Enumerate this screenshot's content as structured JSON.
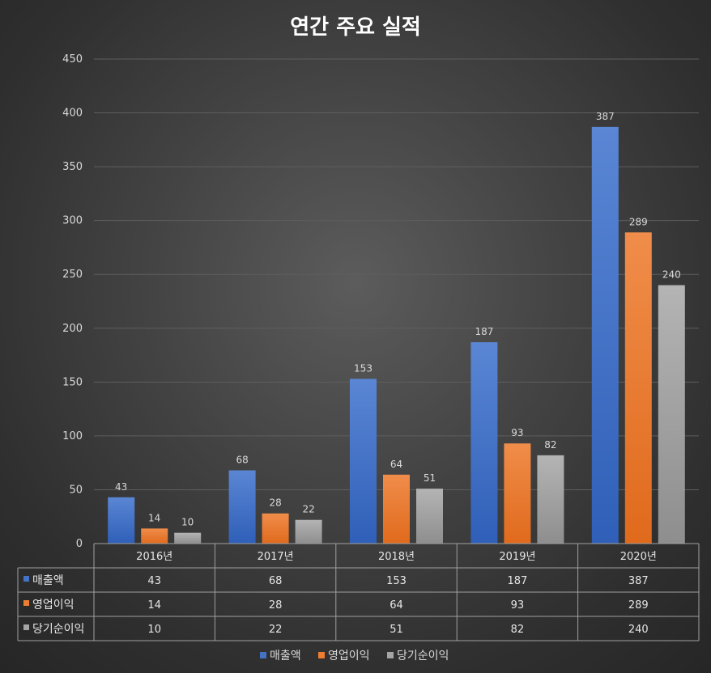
{
  "chart_data": {
    "type": "bar",
    "title": "연간 주요 실적",
    "categories": [
      "2016년",
      "2017년",
      "2018년",
      "2019년",
      "2020년"
    ],
    "series": [
      {
        "name": "매출액",
        "values": [
          43,
          68,
          153,
          187,
          387
        ],
        "color": "#4472c4"
      },
      {
        "name": "영업이익",
        "values": [
          14,
          28,
          64,
          93,
          289
        ],
        "color": "#ed7d31"
      },
      {
        "name": "당기순이익",
        "values": [
          10,
          22,
          51,
          82,
          240
        ],
        "color": "#a5a5a5"
      }
    ],
    "ylim": [
      0,
      450
    ],
    "yticks": [
      0,
      50,
      100,
      150,
      200,
      250,
      300,
      350,
      400,
      450
    ],
    "grid": true,
    "data_table": true,
    "legend": "bottom"
  }
}
